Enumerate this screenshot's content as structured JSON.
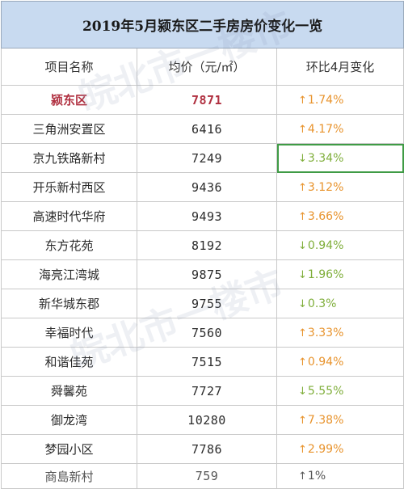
{
  "table": {
    "title": "2019年5月颍东区二手房房价变化一览",
    "headers": [
      "项目名称",
      "均价（元/㎡）",
      "环比4月变化"
    ],
    "rows": [
      {
        "name": "颍东区",
        "price": "7871",
        "arrow": "↑",
        "change": "1.74%",
        "dir": "up"
      },
      {
        "name": "三角洲安置区",
        "price": "6416",
        "arrow": "↑",
        "change": "4.17%",
        "dir": "up"
      },
      {
        "name": "京九铁路新村",
        "price": "7249",
        "arrow": "↓",
        "change": "3.34%",
        "dir": "down"
      },
      {
        "name": "开乐新村西区",
        "price": "9436",
        "arrow": "↑",
        "change": "3.12%",
        "dir": "up"
      },
      {
        "name": "高速时代华府",
        "price": "9493",
        "arrow": "↑",
        "change": "3.66%",
        "dir": "up"
      },
      {
        "name": "东方花苑",
        "price": "8192",
        "arrow": "↓",
        "change": "0.94%",
        "dir": "down"
      },
      {
        "name": "海亮江湾城",
        "price": "9875",
        "arrow": "↓",
        "change": "1.96%",
        "dir": "down"
      },
      {
        "name": "新华城东郡",
        "price": "9755",
        "arrow": "↓",
        "change": "0.3%",
        "dir": "down"
      },
      {
        "name": "幸福时代",
        "price": "7560",
        "arrow": "↑",
        "change": "3.33%",
        "dir": "up"
      },
      {
        "name": "和谐佳苑",
        "price": "7515",
        "arrow": "↑",
        "change": "0.94%",
        "dir": "up"
      },
      {
        "name": "舜馨苑",
        "price": "7727",
        "arrow": "↓",
        "change": "5.55%",
        "dir": "down"
      },
      {
        "name": "御龙湾",
        "price": "10280",
        "arrow": "↑",
        "change": "7.38%",
        "dir": "up"
      },
      {
        "name": "梦园小区",
        "price": "7786",
        "arrow": "↑",
        "change": "2.99%",
        "dir": "up"
      },
      {
        "name": "商島新村",
        "price": "759",
        "arrow": "↑",
        "change": "1%",
        "dir": "up"
      }
    ]
  },
  "watermark": "皖北市一楼市",
  "colors": {
    "title_bg": "#c8daf0",
    "up": "#e8932c",
    "down": "#7fae3a",
    "highlight": "#b03040",
    "selection": "#3f9b45"
  }
}
